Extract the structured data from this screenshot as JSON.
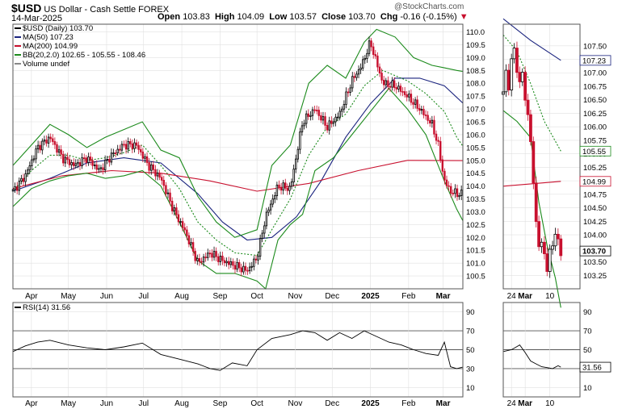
{
  "header": {
    "symbol": "$USD",
    "name": "US Dollar - Cash Settle FOREX",
    "date": "14-Mar-2025",
    "open_label": "Open",
    "open": "103.83",
    "high_label": "High",
    "high": "104.09",
    "low_label": "Low",
    "low": "103.57",
    "close_label": "Close",
    "close": "103.70",
    "chg_label": "Chg",
    "chg": "-0.16 (-0.15%)",
    "watermark": "@StockCharts.com"
  },
  "legend": {
    "price": "$USD (Daily) 103.70",
    "ma50": "MA(50) 107.23",
    "ma200": "MA(200) 104.99",
    "bb": "BB(20,2.0) 102.65 - 105.55 - 108.46",
    "volume": "Volume undef"
  },
  "rsi_legend": "RSI(14) 31.56",
  "colors": {
    "up": "#000000",
    "down": "#c8102e",
    "ma50": "#1a237e",
    "ma200": "#c8102e",
    "bb": "#1b8a1b",
    "bb_mid": "#1b8a1b",
    "grid": "#e0e0e0"
  },
  "chart_data": [
    {
      "type": "line",
      "title": "$USD (Daily) 103.70",
      "ylim": [
        100,
        110.3
      ],
      "yticks": [
        100.5,
        101.0,
        101.5,
        102.0,
        102.5,
        103.0,
        103.5,
        104.0,
        104.5,
        105.0,
        105.5,
        106.0,
        106.5,
        107.0,
        107.5,
        108.0,
        108.5,
        109.0,
        109.5,
        110.0
      ],
      "x_tick_labels": [
        "Apr",
        "May",
        "Jun",
        "Jul",
        "Aug",
        "Sep",
        "Oct",
        "Nov",
        "Dec",
        "2025",
        "Feb",
        "Mar"
      ],
      "x_tick_days": [
        15,
        45,
        76,
        106,
        137,
        168,
        198,
        229,
        259,
        290,
        321,
        349
      ],
      "x_range_days": [
        0,
        365
      ],
      "close_series": {
        "name": "$USD (Daily)",
        "days": [
          0,
          10,
          20,
          30,
          40,
          50,
          60,
          70,
          80,
          90,
          100,
          110,
          120,
          130,
          140,
          150,
          160,
          170,
          180,
          190,
          198,
          205,
          215,
          225,
          235,
          245,
          255,
          265,
          275,
          283,
          290,
          300,
          310,
          320,
          330,
          340,
          345,
          350,
          355,
          360,
          365
        ],
        "values": [
          103.8,
          104.4,
          105.5,
          105.9,
          105.1,
          104.8,
          105.1,
          104.6,
          105.2,
          105.6,
          105.6,
          104.8,
          104.3,
          103.1,
          102.2,
          101.0,
          101.4,
          101.1,
          100.9,
          100.7,
          101.2,
          102.8,
          104.0,
          103.9,
          106.5,
          107.0,
          106.3,
          106.8,
          108.1,
          108.7,
          109.6,
          108.0,
          107.9,
          107.5,
          107.0,
          106.4,
          105.6,
          104.2,
          103.8,
          103.7,
          103.7
        ]
      },
      "series": [
        {
          "name": "MA(50)",
          "days": [
            0,
            30,
            60,
            90,
            120,
            150,
            170,
            190,
            210,
            230,
            250,
            270,
            290,
            310,
            330,
            350,
            365
          ],
          "values": [
            103.8,
            104.3,
            104.9,
            105.1,
            104.9,
            103.7,
            102.6,
            101.9,
            102.0,
            102.8,
            104.2,
            105.9,
            107.2,
            108.2,
            108.2,
            107.9,
            107.23
          ]
        },
        {
          "name": "MA(200)",
          "days": [
            0,
            40,
            80,
            120,
            160,
            198,
            240,
            280,
            320,
            365
          ],
          "values": [
            103.9,
            104.4,
            104.6,
            104.5,
            104.2,
            103.8,
            104.1,
            104.6,
            105.0,
            104.99
          ]
        },
        {
          "name": "BB upper",
          "days": [
            0,
            15,
            30,
            45,
            60,
            75,
            90,
            105,
            120,
            135,
            150,
            165,
            180,
            198,
            210,
            225,
            240,
            255,
            270,
            285,
            295,
            310,
            325,
            340,
            350,
            360,
            365
          ],
          "values": [
            104.8,
            105.6,
            106.4,
            106.0,
            105.5,
            105.9,
            106.2,
            106.5,
            105.4,
            105.1,
            103.6,
            102.6,
            102.0,
            102.3,
            104.8,
            105.6,
            108.0,
            108.7,
            108.2,
            109.6,
            110.1,
            109.8,
            109.0,
            108.7,
            108.6,
            108.5,
            108.46
          ]
        },
        {
          "name": "BB middle",
          "days": [
            0,
            15,
            30,
            45,
            60,
            75,
            90,
            105,
            120,
            135,
            150,
            165,
            180,
            198,
            210,
            225,
            240,
            255,
            270,
            285,
            300,
            320,
            335,
            350,
            360,
            365
          ],
          "values": [
            103.8,
            104.6,
            105.2,
            105.2,
            105.0,
            105.1,
            105.3,
            105.6,
            104.8,
            103.9,
            102.6,
            101.9,
            101.4,
            101.3,
            102.3,
            103.5,
            105.2,
            106.3,
            106.8,
            107.9,
            108.5,
            108.1,
            107.6,
            106.9,
            105.9,
            105.55
          ]
        },
        {
          "name": "BB lower",
          "days": [
            0,
            15,
            30,
            45,
            60,
            75,
            90,
            105,
            120,
            135,
            150,
            165,
            180,
            198,
            205,
            215,
            225,
            235,
            245,
            260,
            275,
            290,
            305,
            320,
            335,
            350,
            360,
            365
          ],
          "values": [
            103.2,
            103.9,
            104.2,
            104.4,
            104.5,
            104.3,
            104.4,
            104.6,
            104.0,
            102.6,
            101.1,
            100.6,
            100.6,
            100.3,
            100.0,
            101.9,
            102.5,
            102.9,
            104.6,
            105.1,
            106.0,
            106.9,
            107.8,
            107.0,
            106.0,
            104.2,
            103.1,
            102.65
          ]
        }
      ]
    },
    {
      "type": "line",
      "title": "RSI(14) 31.56",
      "ylim": [
        0,
        100
      ],
      "yticks": [
        10,
        30,
        50,
        70,
        90
      ],
      "reference_lines": [
        30,
        50,
        70
      ],
      "series": [
        {
          "name": "RSI(14)",
          "days": [
            0,
            10,
            20,
            30,
            45,
            60,
            75,
            90,
            105,
            120,
            135,
            150,
            160,
            168,
            178,
            190,
            198,
            210,
            225,
            235,
            245,
            255,
            265,
            275,
            285,
            295,
            305,
            315,
            325,
            335,
            345,
            350,
            355,
            360,
            365
          ],
          "values": [
            48,
            54,
            58,
            60,
            55,
            52,
            50,
            53,
            57,
            45,
            40,
            35,
            30,
            28,
            36,
            33,
            50,
            62,
            66,
            70,
            68,
            60,
            68,
            62,
            70,
            64,
            58,
            55,
            50,
            46,
            44,
            58,
            32,
            30,
            31.56
          ]
        }
      ]
    },
    {
      "type": "line",
      "title": "",
      "ylim": [
        103.0,
        107.9
      ],
      "yticks": [
        103.25,
        103.5,
        103.75,
        104.0,
        104.25,
        104.5,
        104.75,
        105.0,
        105.25,
        105.5,
        105.75,
        106.0,
        106.25,
        106.5,
        106.75,
        107.0,
        107.25,
        107.5
      ],
      "x_tick_labels": [
        "24",
        "Mar",
        "10"
      ],
      "x_tick_days": [
        3,
        8,
        17
      ],
      "x_range_days": [
        0,
        28
      ],
      "close_series": {
        "name": "$USD (Daily)",
        "days": [
          0,
          1,
          2,
          3,
          4,
          5,
          6,
          7,
          8,
          9,
          10,
          11,
          12,
          13,
          14,
          15,
          16,
          17,
          18,
          19,
          20,
          21
        ],
        "values": [
          106.6,
          107.0,
          106.8,
          107.2,
          107.4,
          107.1,
          106.8,
          107.0,
          106.5,
          106.2,
          105.8,
          104.9,
          104.2,
          103.9,
          103.8,
          103.6,
          103.4,
          103.7,
          103.8,
          104.0,
          103.9,
          103.7
        ]
      },
      "series": [
        {
          "name": "MA(50)",
          "days": [
            0,
            10,
            21
          ],
          "values": [
            108.0,
            107.6,
            107.23
          ]
        },
        {
          "name": "MA(200)",
          "days": [
            0,
            21
          ],
          "values": [
            104.9,
            104.99
          ]
        },
        {
          "name": "BB middle",
          "days": [
            0,
            5,
            10,
            15,
            21
          ],
          "values": [
            107.7,
            107.4,
            106.8,
            106.1,
            105.55
          ]
        },
        {
          "name": "BB lower",
          "days": [
            0,
            5,
            10,
            13,
            16,
            19,
            21
          ],
          "values": [
            106.3,
            106.1,
            105.8,
            104.6,
            103.8,
            103.2,
            102.65
          ]
        }
      ],
      "value_tags": [
        "107.23",
        "105.55",
        "104.99",
        "103.70"
      ]
    },
    {
      "type": "line",
      "title": "",
      "ylim": [
        0,
        100
      ],
      "yticks": [
        10,
        30,
        50,
        70,
        90
      ],
      "reference_lines": [
        30,
        50,
        70
      ],
      "x_tick_labels": [
        "24",
        "Mar",
        "10"
      ],
      "series": [
        {
          "name": "RSI(14)",
          "days": [
            0,
            3,
            6,
            8,
            10,
            12,
            14,
            16,
            18,
            20,
            21
          ],
          "values": [
            48,
            50,
            55,
            47,
            38,
            35,
            32,
            31,
            30,
            33,
            31.56
          ]
        }
      ],
      "value_tags": [
        "31.56"
      ]
    }
  ]
}
